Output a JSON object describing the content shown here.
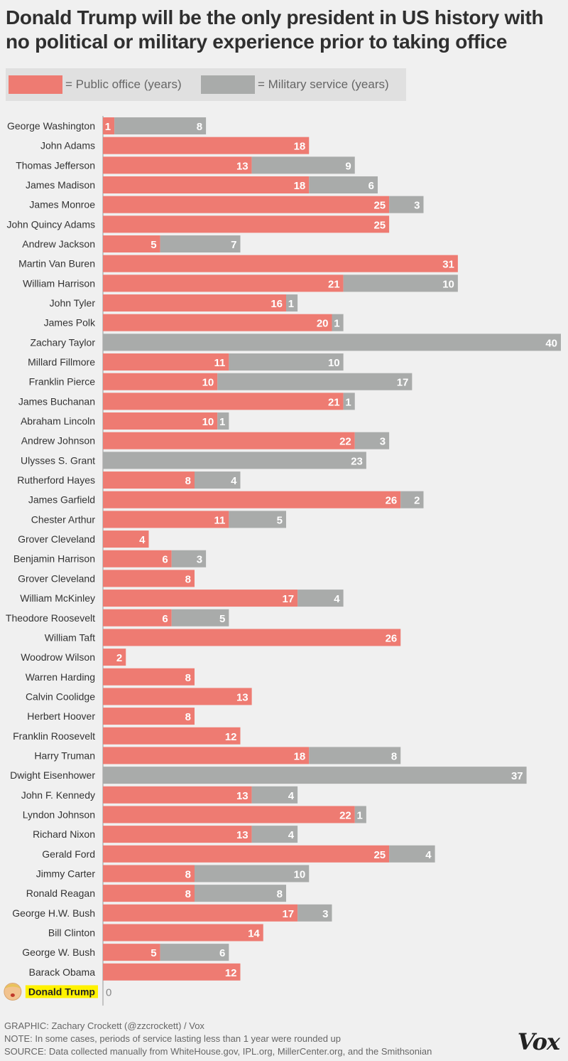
{
  "chart_data": {
    "type": "bar",
    "orientation": "horizontal",
    "stacked": true,
    "title": "Donald Trump will be the only president in US history with no political or military experience prior to taking office",
    "legend": [
      {
        "label": "= Public office (years)",
        "color": "#ee7b72"
      },
      {
        "label": "= Military service (years)",
        "color": "#a9abaa"
      }
    ],
    "legend_position": "top",
    "categories": [
      "George Washington",
      "John Adams",
      "Thomas Jefferson",
      "James Madison",
      "James Monroe",
      "John Quincy Adams",
      "Andrew Jackson",
      "Martin Van Buren",
      "William Harrison",
      "John Tyler",
      "James Polk",
      "Zachary Taylor",
      "Millard Fillmore",
      "Franklin Pierce",
      "James Buchanan",
      "Abraham Lincoln",
      "Andrew Johnson",
      "Ulysses S. Grant",
      "Rutherford Hayes",
      "James Garfield",
      "Chester Arthur",
      "Grover Cleveland",
      "Benjamin Harrison",
      "Grover Cleveland",
      "William McKinley",
      "Theodore Roosevelt",
      "William Taft",
      "Woodrow Wilson",
      "Warren Harding",
      "Calvin Coolidge",
      "Herbert Hoover",
      "Franklin Roosevelt",
      "Harry Truman",
      "Dwight Eisenhower",
      "John F. Kennedy",
      "Lyndon Johnson",
      "Richard Nixon",
      "Gerald Ford",
      "Jimmy Carter",
      "Ronald Reagan",
      "George H.W. Bush",
      "Bill Clinton",
      "George W. Bush",
      "Barack Obama",
      "Donald Trump"
    ],
    "series": [
      {
        "name": "Public office (years)",
        "color": "#ee7b72",
        "values": [
          1,
          18,
          13,
          18,
          25,
          25,
          5,
          31,
          21,
          16,
          20,
          0,
          11,
          10,
          21,
          10,
          22,
          0,
          8,
          26,
          11,
          4,
          6,
          8,
          17,
          6,
          26,
          2,
          8,
          13,
          8,
          12,
          18,
          0,
          13,
          22,
          13,
          25,
          8,
          8,
          17,
          14,
          5,
          12,
          0
        ]
      },
      {
        "name": "Military service (years)",
        "color": "#a9abaa",
        "values": [
          8,
          0,
          9,
          6,
          3,
          0,
          7,
          0,
          10,
          1,
          1,
          40,
          10,
          17,
          1,
          1,
          3,
          23,
          4,
          2,
          5,
          0,
          3,
          0,
          4,
          5,
          0,
          0,
          0,
          0,
          0,
          0,
          8,
          37,
          4,
          1,
          4,
          4,
          10,
          8,
          3,
          0,
          6,
          0,
          0
        ]
      }
    ],
    "highlight": {
      "name": "Donald Trump",
      "value_label": "0",
      "highlight_color": "#fff200"
    },
    "xlim": [
      0,
      40
    ],
    "grid": false
  },
  "footer": {
    "graphic_credit": "GRAPHIC: Zachary Crockett (@zzcrockett) / Vox",
    "note": "NOTE: In some cases, periods of service lasting less than 1 year were rounded up",
    "source": "SOURCE: Data collected manually from WhiteHouse.gov, IPL.org, MillerCenter.org, and the Smithsonian"
  },
  "brand": "Vox"
}
